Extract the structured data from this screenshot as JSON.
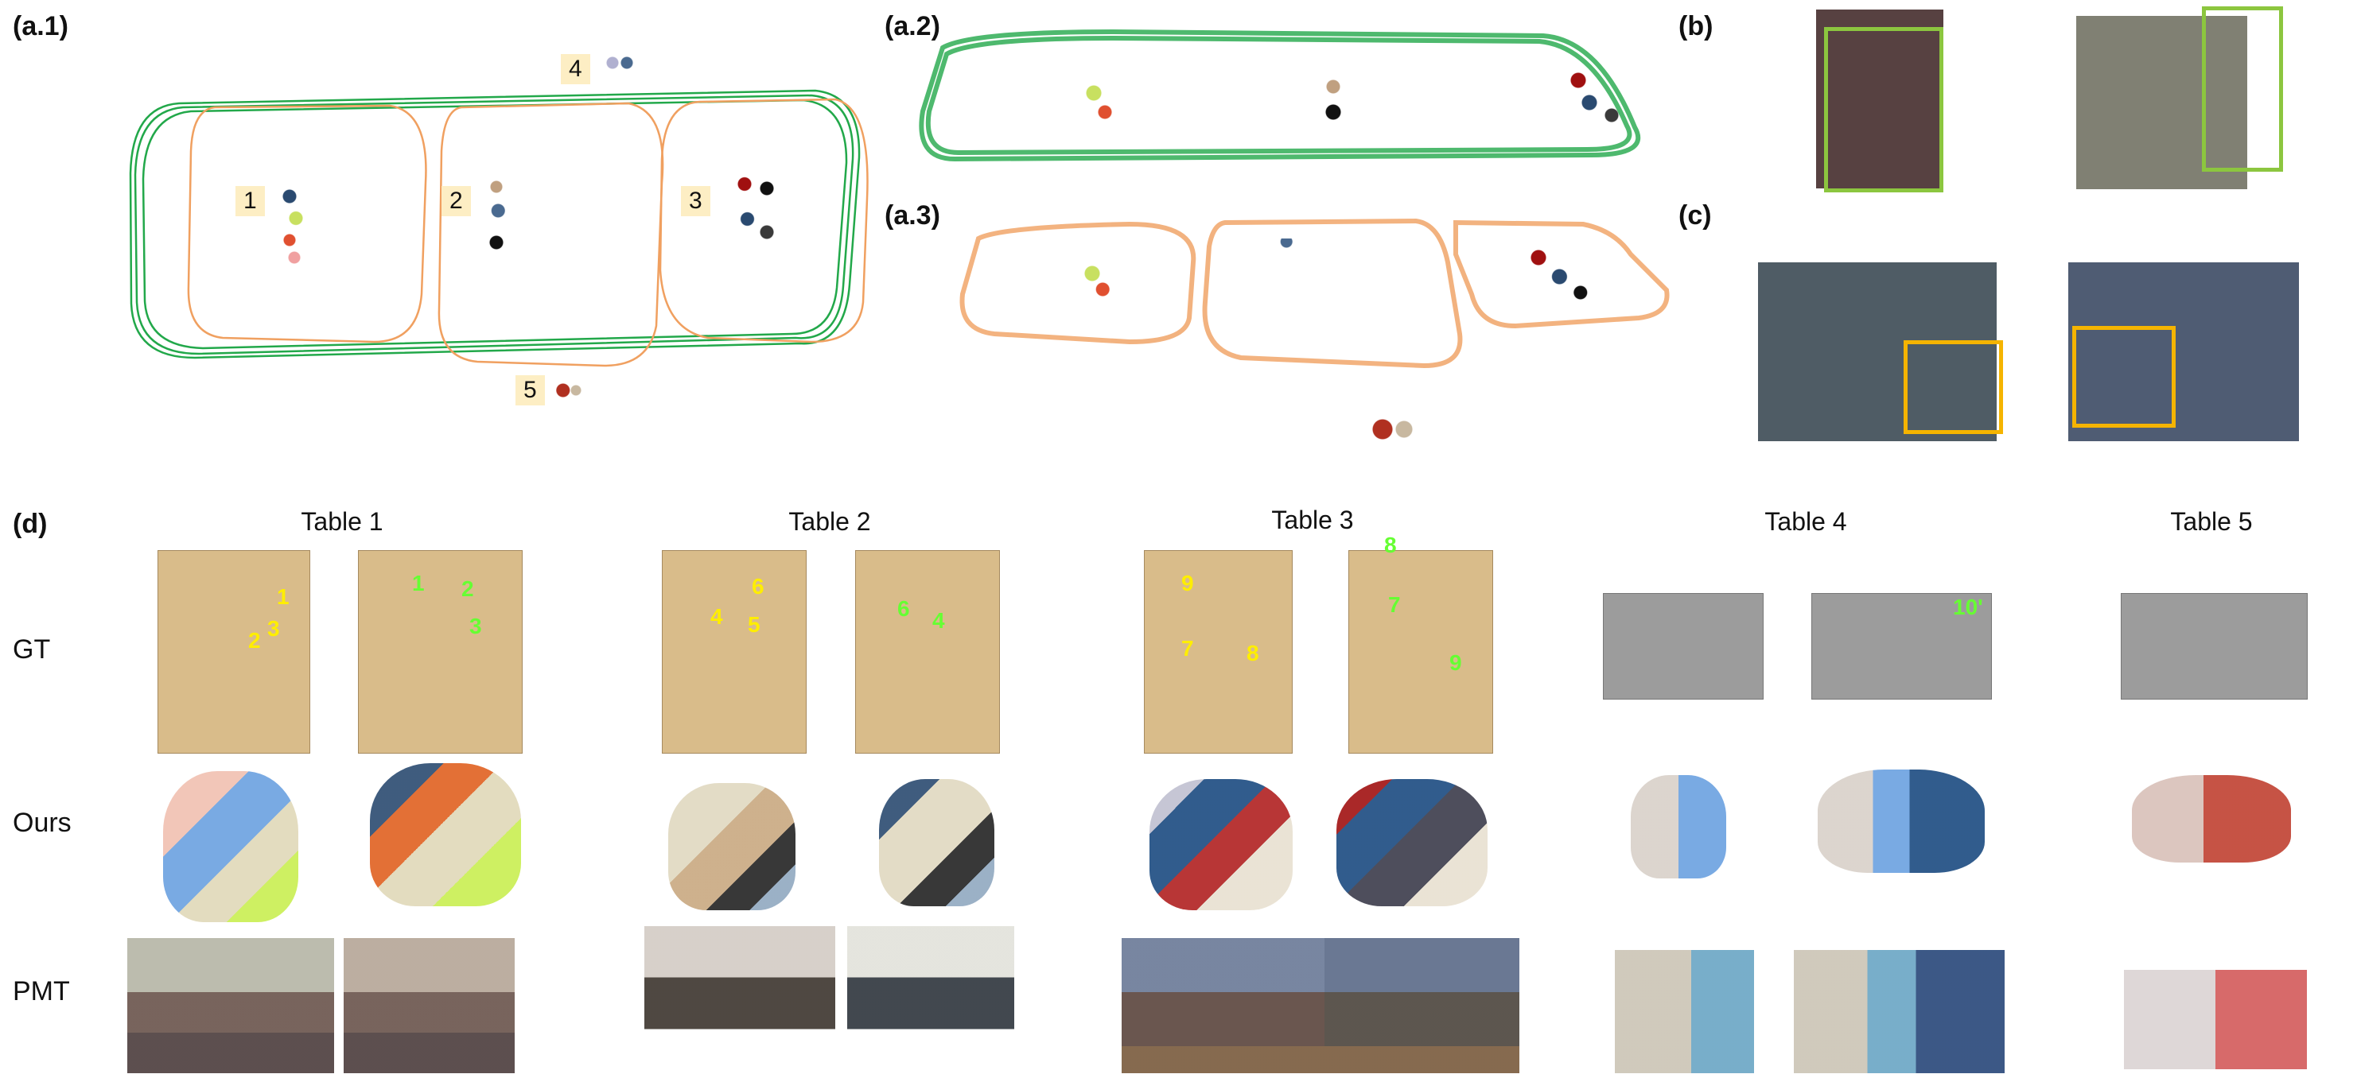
{
  "panels": {
    "a1": "(a.1)",
    "a2": "(a.2)",
    "a3": "(a.3)",
    "b": "(b)",
    "c": "(c)",
    "d": "(d)"
  },
  "table_badges": [
    "1",
    "2",
    "3",
    "4",
    "5"
  ],
  "tables": [
    "Table 1",
    "Table 2",
    "Table 3",
    "Table 4",
    "Table 5"
  ],
  "rows": [
    "GT",
    "Ours",
    "PMT"
  ],
  "object_ids": {
    "t1a": [
      "1",
      "2",
      "3"
    ],
    "t1b": [
      "1",
      "2",
      "3"
    ],
    "t2a": [
      "4",
      "5",
      "6"
    ],
    "t2b": [
      "4",
      "6"
    ],
    "t3a": [
      "9",
      "7",
      "8"
    ],
    "t3b": [
      "8",
      "7",
      "9"
    ],
    "t4b": [
      "10'"
    ]
  },
  "colors": {
    "trajectory_green": "#22a84a",
    "trajectory_orange": "#f0a060",
    "box_green": "#8cc63f",
    "box_yellow": "#f5b400",
    "id_yellow": "#ffee00",
    "id_green": "#66ff33"
  }
}
